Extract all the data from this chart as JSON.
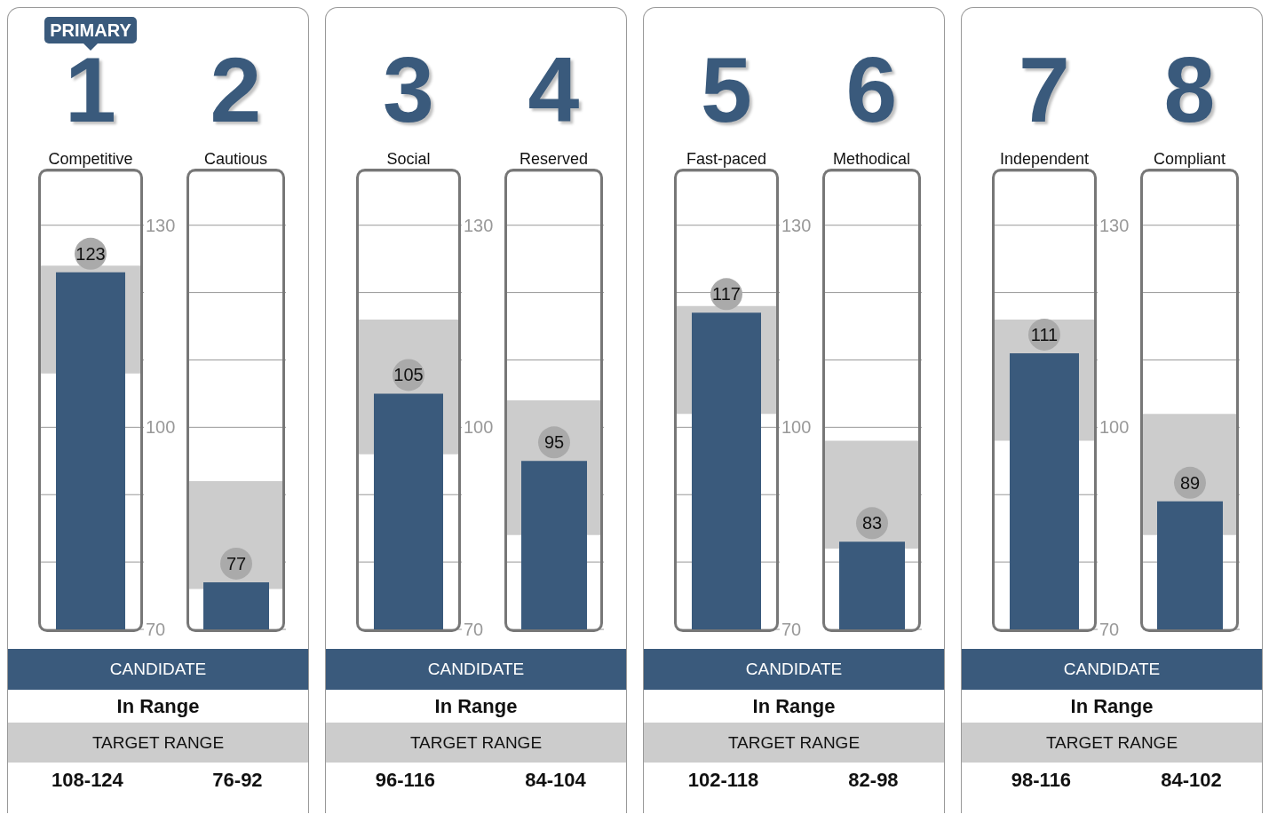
{
  "chart_data": [
    {
      "type": "bar",
      "title": "1",
      "categories": [
        "Competitive"
      ],
      "values": [
        123
      ],
      "color": "#3a5a7c",
      "data_labels": true,
      "ylim": [
        70,
        138
      ],
      "yticks": [
        70,
        {
          "value": 80,
          "label": null
        },
        {
          "value": 90,
          "label": null
        },
        100,
        {
          "value": 110,
          "label": null
        },
        {
          "value": 120,
          "label": null
        },
        130
      ],
      "grid": "y",
      "bands": [
        {
          "axis": "y",
          "from": 108,
          "to": 124,
          "color": "#cccccc"
        }
      ],
      "annotations": [
        "CANDIDATE",
        "In Range",
        "TARGET RANGE",
        "108-124",
        "PRIMARY"
      ]
    },
    {
      "type": "bar",
      "title": "2",
      "categories": [
        "Cautious"
      ],
      "values": [
        77
      ],
      "color": "#3a5a7c",
      "data_labels": true,
      "ylim": [
        70,
        138
      ],
      "yticks": [
        70,
        {
          "value": 80,
          "label": null
        },
        {
          "value": 90,
          "label": null
        },
        100,
        {
          "value": 110,
          "label": null
        },
        {
          "value": 120,
          "label": null
        },
        130
      ],
      "grid": "y",
      "tick_labels": "x",
      "bands": [
        {
          "axis": "y",
          "from": 76,
          "to": 92,
          "color": "#cccccc"
        }
      ],
      "annotations": [
        "76-92"
      ]
    },
    {
      "type": "bar",
      "title": "3",
      "categories": [
        "Social"
      ],
      "values": [
        105
      ],
      "color": "#3a5a7c",
      "data_labels": true,
      "ylim": [
        70,
        138
      ],
      "yticks": [
        70,
        {
          "value": 80,
          "label": null
        },
        {
          "value": 90,
          "label": null
        },
        100,
        {
          "value": 110,
          "label": null
        },
        {
          "value": 120,
          "label": null
        },
        130
      ],
      "grid": "y",
      "bands": [
        {
          "axis": "y",
          "from": 96,
          "to": 116,
          "color": "#cccccc"
        }
      ],
      "annotations": [
        "CANDIDATE",
        "In Range",
        "TARGET RANGE",
        "96-116"
      ]
    },
    {
      "type": "bar",
      "title": "4",
      "categories": [
        "Reserved"
      ],
      "values": [
        95
      ],
      "color": "#3a5a7c",
      "data_labels": true,
      "ylim": [
        70,
        138
      ],
      "yticks": [
        70,
        {
          "value": 80,
          "label": null
        },
        {
          "value": 90,
          "label": null
        },
        100,
        {
          "value": 110,
          "label": null
        },
        {
          "value": 120,
          "label": null
        },
        130
      ],
      "grid": "y",
      "tick_labels": "x",
      "bands": [
        {
          "axis": "y",
          "from": 84,
          "to": 104,
          "color": "#cccccc"
        }
      ],
      "annotations": [
        "84-104"
      ]
    },
    {
      "type": "bar",
      "title": "5",
      "categories": [
        "Fast-paced"
      ],
      "values": [
        117
      ],
      "color": "#3a5a7c",
      "data_labels": true,
      "ylim": [
        70,
        138
      ],
      "yticks": [
        70,
        {
          "value": 80,
          "label": null
        },
        {
          "value": 90,
          "label": null
        },
        100,
        {
          "value": 110,
          "label": null
        },
        {
          "value": 120,
          "label": null
        },
        130
      ],
      "grid": "y",
      "bands": [
        {
          "axis": "y",
          "from": 102,
          "to": 118,
          "color": "#cccccc"
        }
      ],
      "annotations": [
        "CANDIDATE",
        "In Range",
        "TARGET RANGE",
        "102-118"
      ]
    },
    {
      "type": "bar",
      "title": "6",
      "categories": [
        "Methodical"
      ],
      "values": [
        83
      ],
      "color": "#3a5a7c",
      "data_labels": true,
      "ylim": [
        70,
        138
      ],
      "yticks": [
        70,
        {
          "value": 80,
          "label": null
        },
        {
          "value": 90,
          "label": null
        },
        100,
        {
          "value": 110,
          "label": null
        },
        {
          "value": 120,
          "label": null
        },
        130
      ],
      "grid": "y",
      "tick_labels": "x",
      "bands": [
        {
          "axis": "y",
          "from": 82,
          "to": 98,
          "color": "#cccccc"
        }
      ],
      "annotations": [
        "82-98"
      ]
    },
    {
      "type": "bar",
      "title": "7",
      "categories": [
        "Independent"
      ],
      "values": [
        111
      ],
      "color": "#3a5a7c",
      "data_labels": true,
      "ylim": [
        70,
        138
      ],
      "yticks": [
        70,
        {
          "value": 80,
          "label": null
        },
        {
          "value": 90,
          "label": null
        },
        100,
        {
          "value": 110,
          "label": null
        },
        {
          "value": 120,
          "label": null
        },
        130
      ],
      "grid": "y",
      "bands": [
        {
          "axis": "y",
          "from": 98,
          "to": 116,
          "color": "#cccccc"
        }
      ],
      "annotations": [
        "CANDIDATE",
        "In Range",
        "TARGET RANGE",
        "98-116"
      ]
    },
    {
      "type": "bar",
      "title": "8",
      "categories": [
        "Compliant"
      ],
      "values": [
        89
      ],
      "color": "#3a5a7c",
      "data_labels": true,
      "ylim": [
        70,
        138
      ],
      "yticks": [
        70,
        {
          "value": 80,
          "label": null
        },
        {
          "value": 90,
          "label": null
        },
        100,
        {
          "value": 110,
          "label": null
        },
        {
          "value": 120,
          "label": null
        },
        130
      ],
      "grid": "y",
      "tick_labels": "x",
      "bands": [
        {
          "axis": "y",
          "from": 84,
          "to": 102,
          "color": "#cccccc"
        }
      ],
      "annotations": [
        "84-102"
      ]
    }
  ]
}
